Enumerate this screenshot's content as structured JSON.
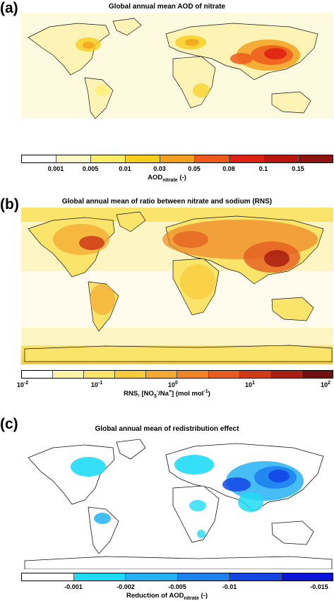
{
  "panels": [
    {
      "label": "(a)",
      "title": "Global annual mean AOD of nitrate",
      "colorbar_ticks": [
        "0.001",
        "0.005",
        "0.01",
        "0.03",
        "0.05",
        "0.08",
        "0.1",
        "0.15"
      ],
      "colorbar_label_main": "AOD",
      "colorbar_label_sub": "nitrate",
      "colorbar_label_tail": " (-)"
    },
    {
      "label": "(b)",
      "title": "Global annual mean of ratio between nitrate and sodium (RNS)",
      "colorbar_ticks": [
        "10-2",
        "10-1",
        "100",
        "101",
        "102"
      ],
      "colorbar_label_main": "RNS, [NO",
      "colorbar_label_sub": "3",
      "colorbar_label_mid": "/Na",
      "colorbar_label_tail": "]   (mol mol"
    },
    {
      "label": "(c)",
      "title": "Global annual mean of redistribution effect",
      "colorbar_ticks": [
        "-0.001",
        "-0.002",
        "-0.005",
        "-0.01",
        "-0.015"
      ],
      "colorbar_label_main": "Reduction of AOD",
      "colorbar_label_sub": "nitrate",
      "colorbar_label_tail": " (-)"
    }
  ],
  "colors": {
    "a_scale": [
      "#ffffff",
      "#fdf8c8",
      "#fbee66",
      "#f6ce1a",
      "#f3a01e",
      "#ee5a1c",
      "#dd2214",
      "#b81810",
      "#8e1410"
    ],
    "b_scale": [
      "#ffffff",
      "#fdf3a8",
      "#fbe46a",
      "#f8cb3a",
      "#f4a930",
      "#ee8426",
      "#e35e20",
      "#cf3a18",
      "#a81e12",
      "#6e1010"
    ],
    "c_scale": [
      "#ffffff",
      "#1fdcf5",
      "#26b2f2",
      "#1e82ee",
      "#1446e6",
      "#0b14d8"
    ]
  }
}
